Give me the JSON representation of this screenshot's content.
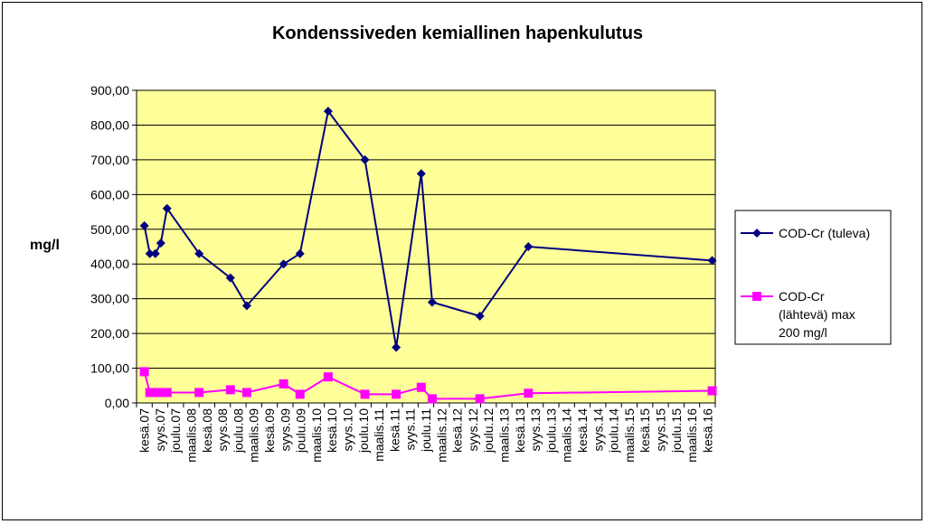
{
  "chart_data": {
    "type": "line",
    "title": "Kondenssiveden kemiallinen hapenkulutus",
    "ylabel": "mg/l",
    "xlabel": "",
    "ylim": [
      0,
      900
    ],
    "yticks": [
      "0,00",
      "100,00",
      "200,00",
      "300,00",
      "400,00",
      "500,00",
      "600,00",
      "700,00",
      "800,00",
      "900,00"
    ],
    "categories": [
      "kesä.07",
      "syys.07",
      "joulu.07",
      "maalis.08",
      "kesä.08",
      "syys.08",
      "joulu.08",
      "maalis.09",
      "kesä.09",
      "syys.09",
      "joulu.09",
      "maalis.10",
      "kesä.10",
      "syys.10",
      "joulu.10",
      "maalis.11",
      "kesä.11",
      "syys.11",
      "joulu.11",
      "maalis.12",
      "kesä.12",
      "syys.12",
      "joulu.12",
      "maalis.13",
      "kesä.13",
      "syys.13",
      "joulu.13",
      "maalis.14",
      "kesä.14",
      "syys.14",
      "joulu.14",
      "maalis.15",
      "kesä.15",
      "syys.15",
      "joulu.15",
      "maalis.16",
      "kesä.16"
    ],
    "grid": true,
    "legend_position": "right",
    "plot_background": "#ffff99",
    "series": [
      {
        "name": "COD-Cr (tuleva)",
        "color": "#000080",
        "marker": "diamond",
        "x": [
          0,
          0.35,
          0.7,
          1.05,
          1.45,
          3.5,
          5.5,
          6.55,
          8.9,
          9.95,
          11.75,
          14.1,
          16.1,
          17.7,
          18.4,
          21.45,
          24.55,
          36.3
        ],
        "values": [
          510,
          430,
          430,
          460,
          560,
          430,
          360,
          280,
          400,
          430,
          840,
          700,
          160,
          660,
          290,
          250,
          450,
          410
        ]
      },
      {
        "name": "COD-Cr (lähtevä) max 200 mg/l",
        "color": "#ff00ff",
        "marker": "square",
        "x": [
          0,
          0.35,
          0.7,
          1.05,
          1.45,
          3.5,
          5.5,
          6.55,
          8.9,
          9.95,
          11.75,
          14.1,
          16.1,
          17.7,
          18.4,
          21.45,
          24.55,
          36.3
        ],
        "values": [
          90,
          30,
          30,
          30,
          30,
          30,
          38,
          30,
          55,
          25,
          75,
          25,
          25,
          45,
          12,
          12,
          28,
          35
        ]
      }
    ]
  }
}
